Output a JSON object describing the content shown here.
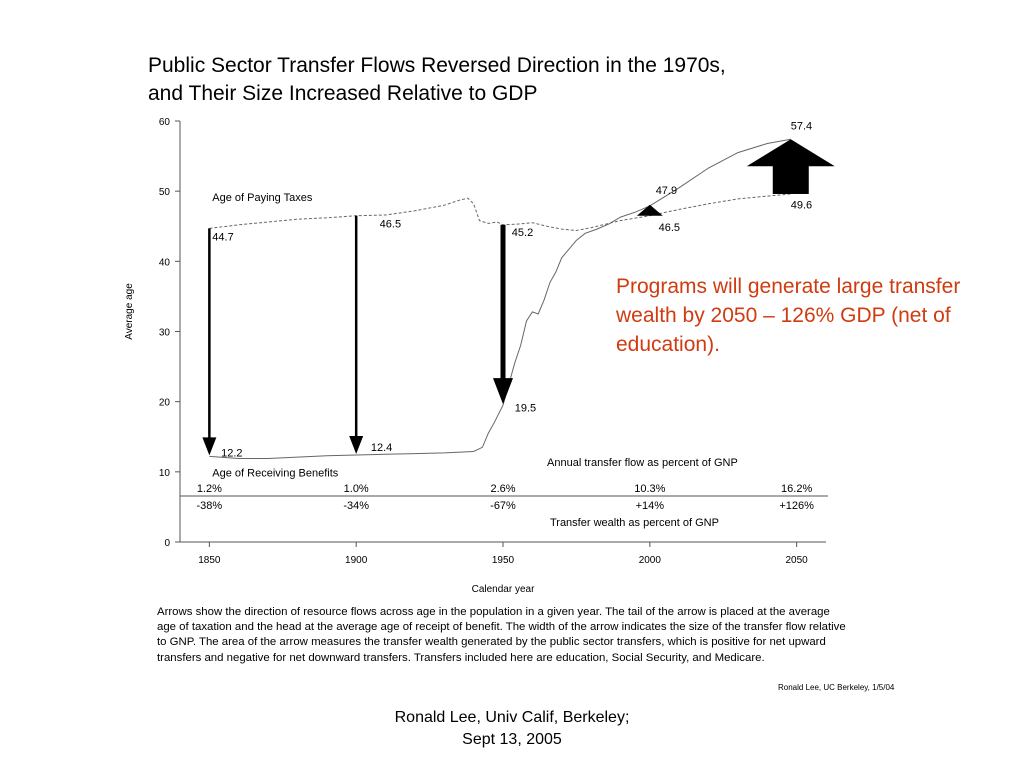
{
  "title_line1": "Public Sector Transfer Flows Reversed Direction in the 1970s,",
  "title_line2": "and Their Size Increased Relative to GDP",
  "callout": "Programs will generate large transfer wealth by 2050 – 126% GDP (net of education).",
  "caption": "Arrows show the direction of resource flows across age in the population in a given year.  The tail of the arrow is placed at the average age of taxation and the head at the average age of receipt of benefit.  The width of the arrow indicates the size of the transfer flow relative to GNP.  The area of the arrow measures the transfer wealth generated by the public sector transfers, which is positive for net upward transfers and negative for net downward transfers.  Transfers included here are education, Social Security, and Medicare.",
  "credit": "Ronald Lee, UC Berkeley, 1/5/04",
  "footer_line1": "Ronald Lee, Univ Calif, Berkeley;",
  "footer_line2": "Sept 13, 2005",
  "chart_data": {
    "type": "line",
    "xlabel": "Calendar year",
    "ylabel": "Average age",
    "xlim": [
      1840,
      2060
    ],
    "ylim": [
      0,
      60
    ],
    "x_ticks": [
      1850,
      1900,
      1950,
      2000,
      2050
    ],
    "y_ticks": [
      0,
      10,
      20,
      30,
      40,
      50,
      60
    ],
    "series": [
      {
        "name": "Age of Paying Taxes",
        "style": "dashed",
        "points": [
          [
            1850,
            44.7
          ],
          [
            1860,
            45.2
          ],
          [
            1870,
            45.6
          ],
          [
            1880,
            46.0
          ],
          [
            1890,
            46.2
          ],
          [
            1900,
            46.5
          ],
          [
            1910,
            46.6
          ],
          [
            1920,
            47.2
          ],
          [
            1930,
            48.0
          ],
          [
            1935,
            48.7
          ],
          [
            1938,
            49.0
          ],
          [
            1940,
            48.2
          ],
          [
            1942,
            45.8
          ],
          [
            1945,
            45.4
          ],
          [
            1948,
            45.6
          ],
          [
            1950,
            45.2
          ],
          [
            1955,
            45.3
          ],
          [
            1960,
            45.5
          ],
          [
            1965,
            45.0
          ],
          [
            1970,
            44.6
          ],
          [
            1975,
            44.4
          ],
          [
            1980,
            44.8
          ],
          [
            1990,
            45.8
          ],
          [
            2000,
            46.5
          ],
          [
            2010,
            47.4
          ],
          [
            2020,
            48.2
          ],
          [
            2030,
            48.9
          ],
          [
            2040,
            49.3
          ],
          [
            2048,
            49.6
          ]
        ]
      },
      {
        "name": "Age of Receiving Benefits",
        "style": "solid",
        "points": [
          [
            1850,
            12.2
          ],
          [
            1860,
            11.9
          ],
          [
            1870,
            11.9
          ],
          [
            1880,
            12.1
          ],
          [
            1890,
            12.3
          ],
          [
            1900,
            12.4
          ],
          [
            1910,
            12.5
          ],
          [
            1920,
            12.6
          ],
          [
            1930,
            12.7
          ],
          [
            1940,
            12.9
          ],
          [
            1943,
            13.5
          ],
          [
            1945,
            15.5
          ],
          [
            1947,
            17.0
          ],
          [
            1950,
            19.5
          ],
          [
            1952,
            22.5
          ],
          [
            1954,
            25.5
          ],
          [
            1956,
            28.0
          ],
          [
            1958,
            31.5
          ],
          [
            1960,
            32.8
          ],
          [
            1962,
            32.5
          ],
          [
            1964,
            34.5
          ],
          [
            1966,
            37.0
          ],
          [
            1968,
            38.5
          ],
          [
            1970,
            40.5
          ],
          [
            1972,
            41.5
          ],
          [
            1975,
            43.0
          ],
          [
            1978,
            44.0
          ],
          [
            1982,
            44.6
          ],
          [
            1986,
            45.3
          ],
          [
            1990,
            46.3
          ],
          [
            1995,
            47.0
          ],
          [
            2000,
            47.9
          ],
          [
            2010,
            50.5
          ],
          [
            2020,
            53.3
          ],
          [
            2030,
            55.5
          ],
          [
            2040,
            56.8
          ],
          [
            2048,
            57.4
          ]
        ]
      }
    ],
    "arrows": [
      {
        "year": 1850,
        "tax_age": 44.7,
        "benefit_age": 12.2,
        "direction": "down",
        "width": "thin"
      },
      {
        "year": 1900,
        "tax_age": 46.5,
        "benefit_age": 12.4,
        "direction": "down",
        "width": "thin"
      },
      {
        "year": 1950,
        "tax_age": 45.2,
        "benefit_age": 19.5,
        "direction": "down",
        "width": "medium"
      },
      {
        "year": 2000,
        "tax_age": 46.5,
        "benefit_age": 47.9,
        "direction": "up",
        "width": "wide"
      },
      {
        "year": 2048,
        "tax_age": 49.6,
        "benefit_age": 57.4,
        "direction": "up",
        "width": "widest"
      }
    ],
    "point_labels": [
      {
        "text": "44.7",
        "x": 1851,
        "y": 43.0
      },
      {
        "text": "12.2",
        "x": 1854,
        "y": 12.2
      },
      {
        "text": "46.5",
        "x": 1908,
        "y": 44.8
      },
      {
        "text": "12.4",
        "x": 1905,
        "y": 13.0
      },
      {
        "text": "45.2",
        "x": 1953,
        "y": 43.6
      },
      {
        "text": "19.5",
        "x": 1954,
        "y": 18.6
      },
      {
        "text": "47.9",
        "x": 2002,
        "y": 49.6
      },
      {
        "text": "46.5",
        "x": 2003,
        "y": 44.3
      },
      {
        "text": "57.4",
        "x": 2048,
        "y": 58.8
      },
      {
        "text": "49.6",
        "x": 2048,
        "y": 47.5
      }
    ],
    "series_labels": [
      {
        "text": "Age of Paying Taxes",
        "x": 1851,
        "y": 48.6
      },
      {
        "text": "Age of Receiving Benefits",
        "x": 1851,
        "y": 9.3
      }
    ],
    "table": {
      "flow_label": "Annual transfer flow as percent of GNP",
      "wealth_label": "Transfer wealth as percent of GNP",
      "columns": [
        {
          "year": 1850,
          "flow": "1.2%",
          "wealth": "-38%"
        },
        {
          "year": 1900,
          "flow": "1.0%",
          "wealth": "-34%"
        },
        {
          "year": 1950,
          "flow": "2.6%",
          "wealth": "-67%"
        },
        {
          "year": 2000,
          "flow": "10.3%",
          "wealth": "+14%"
        },
        {
          "year": 2050,
          "flow": "16.2%",
          "wealth": "+126%"
        }
      ]
    },
    "grid": false,
    "legend": "none"
  }
}
